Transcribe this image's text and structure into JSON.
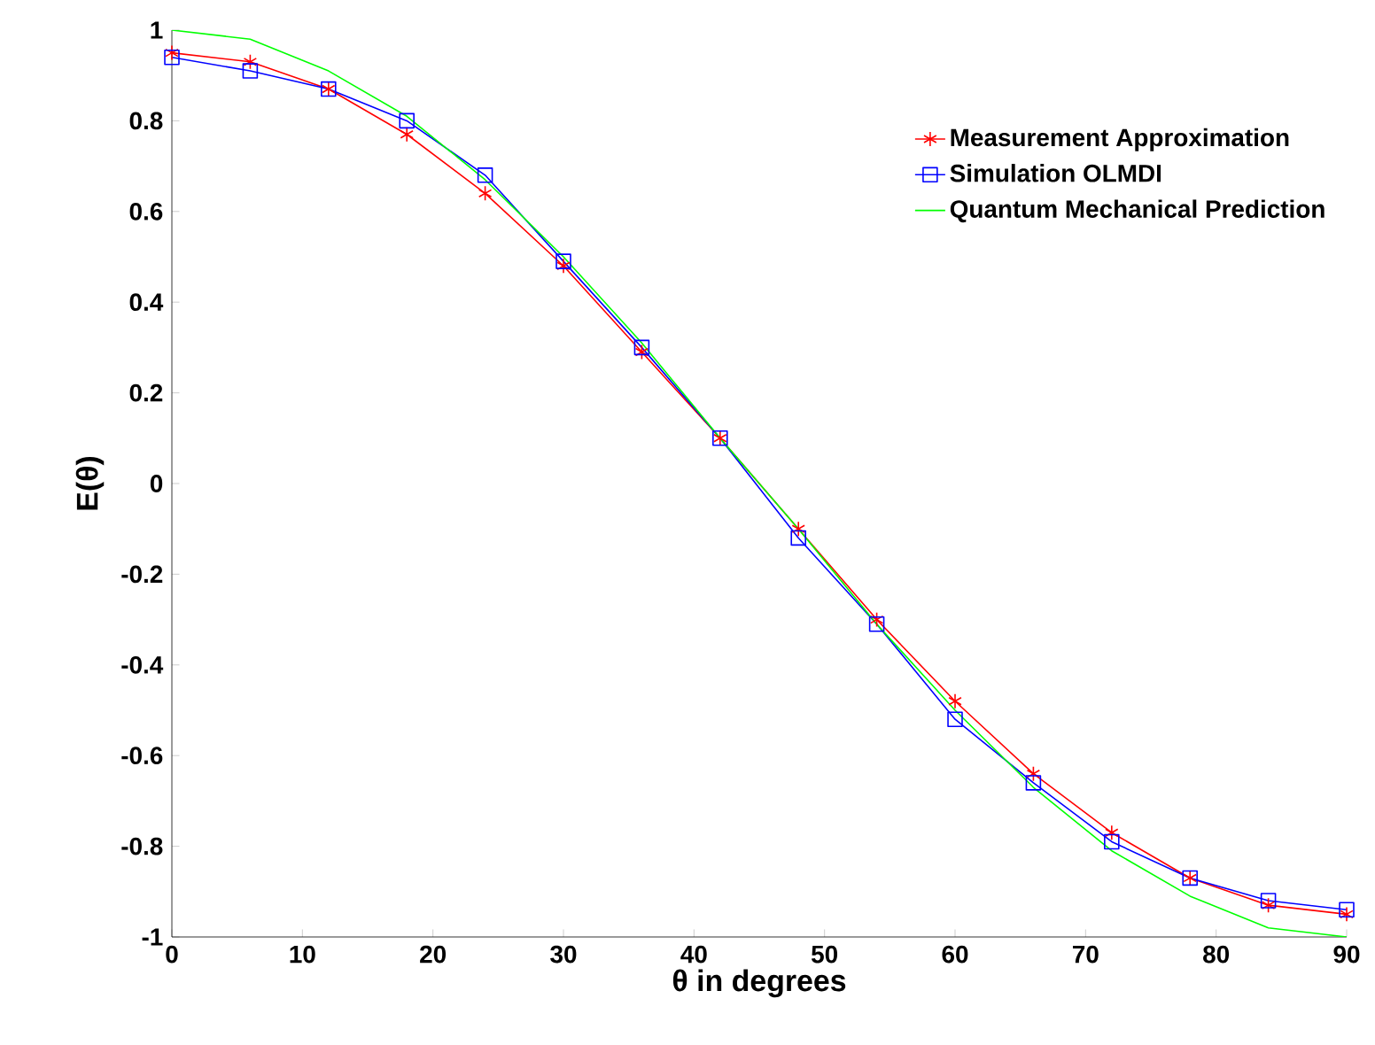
{
  "chart_data": {
    "type": "line",
    "xlabel": "θ in degrees",
    "ylabel": "E(θ)",
    "x": [
      0,
      6,
      12,
      18,
      24,
      30,
      36,
      42,
      48,
      54,
      60,
      66,
      72,
      78,
      84,
      90
    ],
    "series": [
      {
        "name": "Measurement Approximation",
        "color": "#ff0000",
        "marker": "cross",
        "values": [
          0.95,
          0.93,
          0.87,
          0.77,
          0.64,
          0.48,
          0.29,
          0.1,
          -0.1,
          -0.3,
          -0.48,
          -0.64,
          -0.77,
          -0.87,
          -0.93,
          -0.95
        ]
      },
      {
        "name": "Simulation OLMDI",
        "color": "#0000ff",
        "marker": "square",
        "values": [
          0.94,
          0.91,
          0.87,
          0.8,
          0.68,
          0.49,
          0.3,
          0.1,
          -0.12,
          -0.31,
          -0.52,
          -0.66,
          -0.79,
          -0.87,
          -0.92,
          -0.94
        ]
      },
      {
        "name": "Quantum Mechanical Prediction",
        "color": "#00ff00",
        "marker": "none",
        "values": [
          1.0,
          0.98,
          0.91,
          0.81,
          0.67,
          0.5,
          0.31,
          0.1,
          -0.1,
          -0.31,
          -0.5,
          -0.67,
          -0.81,
          -0.91,
          -0.98,
          -1.0
        ]
      }
    ],
    "xlim": [
      0,
      90
    ],
    "ylim": [
      -1,
      1
    ],
    "xticks": [
      0,
      10,
      20,
      30,
      40,
      50,
      60,
      70,
      80,
      90
    ],
    "yticks": [
      -1,
      -0.8,
      -0.6,
      -0.4,
      -0.2,
      0,
      0.2,
      0.4,
      0.6,
      0.8,
      1
    ],
    "grid": false,
    "legend": "top right"
  }
}
